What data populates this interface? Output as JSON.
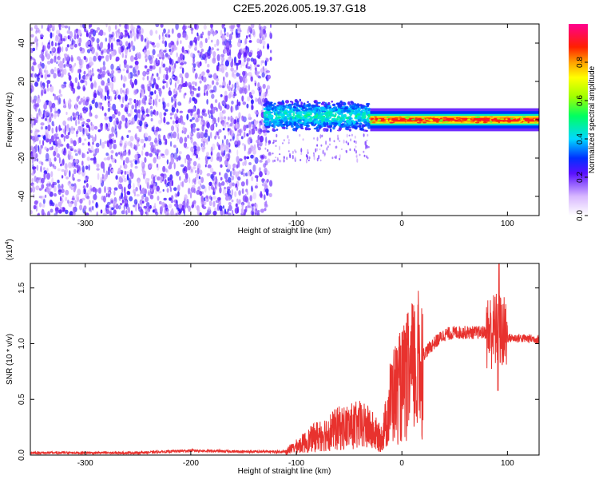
{
  "title": "C2E5.2026.005.19.37.G18",
  "colors": {
    "noise": "#7a1fe0",
    "snr_line": "#e8322e"
  },
  "chart_data": [
    {
      "type": "heatmap",
      "xlabel": "Height of straight line (km)",
      "ylabel": "Frequency (Hz)",
      "xlim": [
        -352,
        130
      ],
      "ylim": [
        -50,
        50
      ],
      "xticks": [
        -300,
        -200,
        -100,
        0,
        100
      ],
      "yticks": [
        40,
        20,
        0,
        -20,
        -40
      ],
      "colorbar": {
        "label": "Normalized spectral amplitude",
        "range": [
          0.0,
          1.0
        ],
        "ticks": [
          0.0,
          0.2,
          0.4,
          0.6,
          0.8
        ]
      },
      "features": [
        {
          "region": "noise",
          "x_range": [
            -352,
            -130
          ],
          "y_range": [
            -50,
            50
          ],
          "amplitude": 0.2
        },
        {
          "region": "signal_spread",
          "x_range": [
            -130,
            -30
          ],
          "y_center": 2,
          "y_halfwidth": 7,
          "amplitude": 0.4
        },
        {
          "region": "carrier_line",
          "x_range": [
            -30,
            130
          ],
          "y_center": 0,
          "y_halfwidth": 2,
          "amplitude": 1.0
        }
      ]
    },
    {
      "type": "line",
      "xlabel": "Height of straight line (km)",
      "ylabel": "SNR (10 * v/v)",
      "ylabel_multiplier": "(x10",
      "ylabel_multiplier_exp": "4",
      "multiplier_close": ")",
      "xlim": [
        -352,
        130
      ],
      "ylim": [
        0,
        1.72
      ],
      "xticks": [
        -300,
        -200,
        -100,
        0,
        100
      ],
      "yticks": [
        0.0,
        0.5,
        1.0,
        1.5
      ],
      "ytick_labels": [
        "0.0",
        "0.5",
        "1.0",
        "1.5"
      ],
      "series_profile": {
        "x": [
          -352,
          -250,
          -200,
          -150,
          -110,
          -100,
          -80,
          -60,
          -40,
          -30,
          -20,
          -15,
          -10,
          0,
          10,
          20,
          30,
          40,
          50,
          60,
          70,
          80,
          90,
          95,
          100,
          110,
          130
        ],
        "y": [
          0.02,
          0.02,
          0.04,
          0.03,
          0.03,
          0.08,
          0.18,
          0.25,
          0.28,
          0.25,
          0.15,
          0.3,
          0.55,
          0.65,
          0.8,
          0.9,
          1.0,
          1.08,
          1.1,
          1.1,
          1.1,
          1.1,
          1.12,
          1.1,
          1.05,
          1.05,
          1.04
        ]
      },
      "peaks": [
        {
          "x": 92,
          "y": 1.72
        },
        {
          "x": 91,
          "y": 0.58
        }
      ]
    }
  ]
}
